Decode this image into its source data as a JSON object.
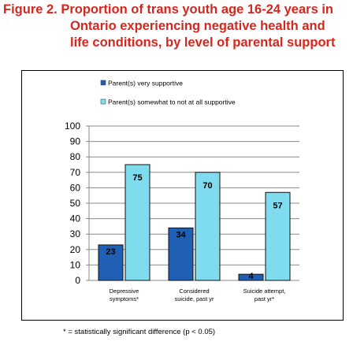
{
  "title_lines": [
    "Figure 2.  Proportion of trans youth age 16-24 years in",
    "Ontario experiencing negative health and",
    "life conditions, by level of parental support"
  ],
  "footnote": "* = statistically significant difference (p < 0.05)",
  "colors": {
    "title": "#d7261e",
    "series_supportive": "#1f5fb4",
    "series_not_supportive": "#7fdcef"
  },
  "chart_data": {
    "type": "bar",
    "categories": [
      [
        "Depressive",
        "symptoms*"
      ],
      [
        "Considered",
        "suicide, past yr"
      ],
      [
        "Suicide attempt,",
        "past yr*"
      ]
    ],
    "series": [
      {
        "name": "Parent(s) very supportive",
        "values": [
          23,
          34,
          4
        ]
      },
      {
        "name": "Parent(s) somewhat to not at all supportive",
        "values": [
          75,
          70,
          57
        ]
      }
    ],
    "ylim": [
      0,
      100
    ],
    "yticks": [
      0,
      10,
      20,
      30,
      40,
      50,
      60,
      70,
      80,
      90,
      100
    ],
    "legend_position": "top-left",
    "grid": true
  }
}
